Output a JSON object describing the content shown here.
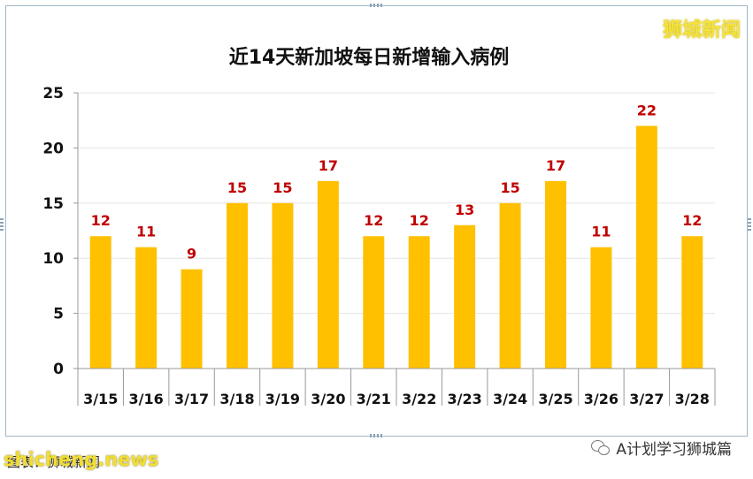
{
  "watermark_top": "狮城新闻",
  "footer": {
    "source_label": "图表：",
    "source_value": "狮城新闻",
    "site": "shicheng.news",
    "wechat_account": "A计划学习狮城篇"
  },
  "colors": {
    "bar": "#FFC000",
    "label": "#C00000",
    "frame": "#9fb8c8",
    "axis": "#999999",
    "grid": "#e6e6e6"
  },
  "chart_data": {
    "type": "bar",
    "title": "近14天新加坡每日新增输入病例",
    "categories": [
      "3/15",
      "3/16",
      "3/17",
      "3/18",
      "3/19",
      "3/20",
      "3/21",
      "3/22",
      "3/23",
      "3/24",
      "3/25",
      "3/26",
      "3/27",
      "3/28"
    ],
    "values": [
      12,
      11,
      9,
      15,
      15,
      17,
      12,
      12,
      13,
      15,
      17,
      11,
      22,
      12
    ],
    "ylim": [
      0,
      25
    ],
    "yticks": [
      0,
      5,
      10,
      15,
      20,
      25
    ],
    "xlabel": "",
    "ylabel": "",
    "grid": true,
    "data_labels": true
  }
}
